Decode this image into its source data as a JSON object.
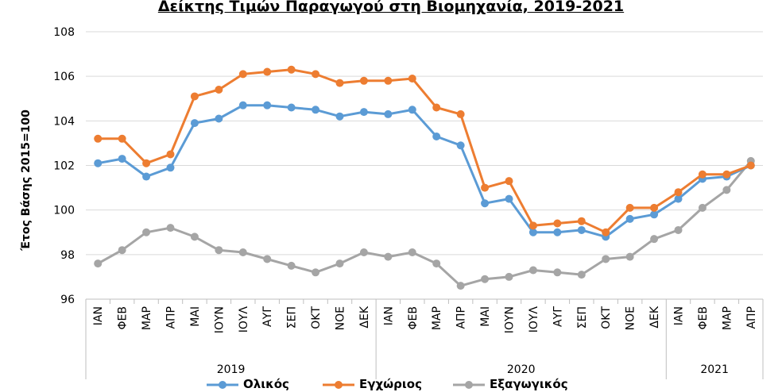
{
  "chart_data": {
    "type": "line",
    "title": "Δείκτης Τιμών Παραγωγού στη Βιομηχανία, 2019-2021",
    "ylabel": "Έτος Βάσης 2015=100",
    "ylim": [
      96,
      108
    ],
    "yticks": [
      "96",
      "98",
      "100",
      "102",
      "104",
      "106",
      "108"
    ],
    "grid": "horizontal",
    "legend_position": "bottom",
    "categories": [
      "ΙΑΝ",
      "ΦΕΒ",
      "ΜΑΡ",
      "ΑΠΡ",
      "ΜΑΙ",
      "ΙΟΥΝ",
      "ΙΟΥΛ",
      "ΑΥΓ",
      "ΣΕΠ",
      "ΟΚΤ",
      "ΝΟΕ",
      "ΔΕΚ",
      "ΙΑΝ",
      "ΦΕΒ",
      "ΜΑΡ",
      "ΑΠΡ",
      "ΜΑΙ",
      "ΙΟΥΝ",
      "ΙΟΥΛ",
      "ΑΥΓ",
      "ΣΕΠ",
      "ΟΚΤ",
      "ΝΟΕ",
      "ΔΕΚ",
      "ΙΑΝ",
      "ΦΕΒ",
      "ΜΑΡ",
      "ΑΠΡ"
    ],
    "year_groups": [
      {
        "label": "2019",
        "count": 12
      },
      {
        "label": "2020",
        "count": 12
      },
      {
        "label": "2021",
        "count": 4
      }
    ],
    "series": [
      {
        "name": "Ολικός",
        "color": "#5b9bd5",
        "values": [
          102.1,
          102.3,
          101.5,
          101.9,
          103.9,
          104.1,
          104.7,
          104.7,
          104.6,
          104.5,
          104.2,
          104.4,
          104.3,
          104.5,
          103.3,
          102.9,
          100.3,
          100.5,
          99.0,
          99.0,
          99.1,
          98.8,
          99.6,
          99.8,
          100.5,
          101.4,
          101.5,
          102.0
        ]
      },
      {
        "name": "Εγχώριος",
        "color": "#ed7d31",
        "values": [
          103.2,
          103.2,
          102.1,
          102.5,
          105.1,
          105.4,
          106.1,
          106.2,
          106.3,
          106.1,
          105.7,
          105.8,
          105.8,
          105.9,
          104.6,
          104.3,
          101.0,
          101.3,
          99.3,
          99.4,
          99.5,
          99.0,
          100.1,
          100.1,
          100.8,
          101.6,
          101.6,
          102.0
        ]
      },
      {
        "name": "Εξαγωγικός",
        "color": "#a5a5a5",
        "values": [
          97.6,
          98.2,
          99.0,
          99.2,
          98.8,
          98.2,
          98.1,
          97.8,
          97.5,
          97.2,
          97.6,
          98.1,
          97.9,
          98.1,
          97.6,
          96.6,
          96.9,
          97.0,
          97.3,
          97.2,
          97.1,
          97.8,
          97.9,
          98.7,
          99.1,
          100.1,
          100.9,
          102.2
        ]
      }
    ]
  }
}
